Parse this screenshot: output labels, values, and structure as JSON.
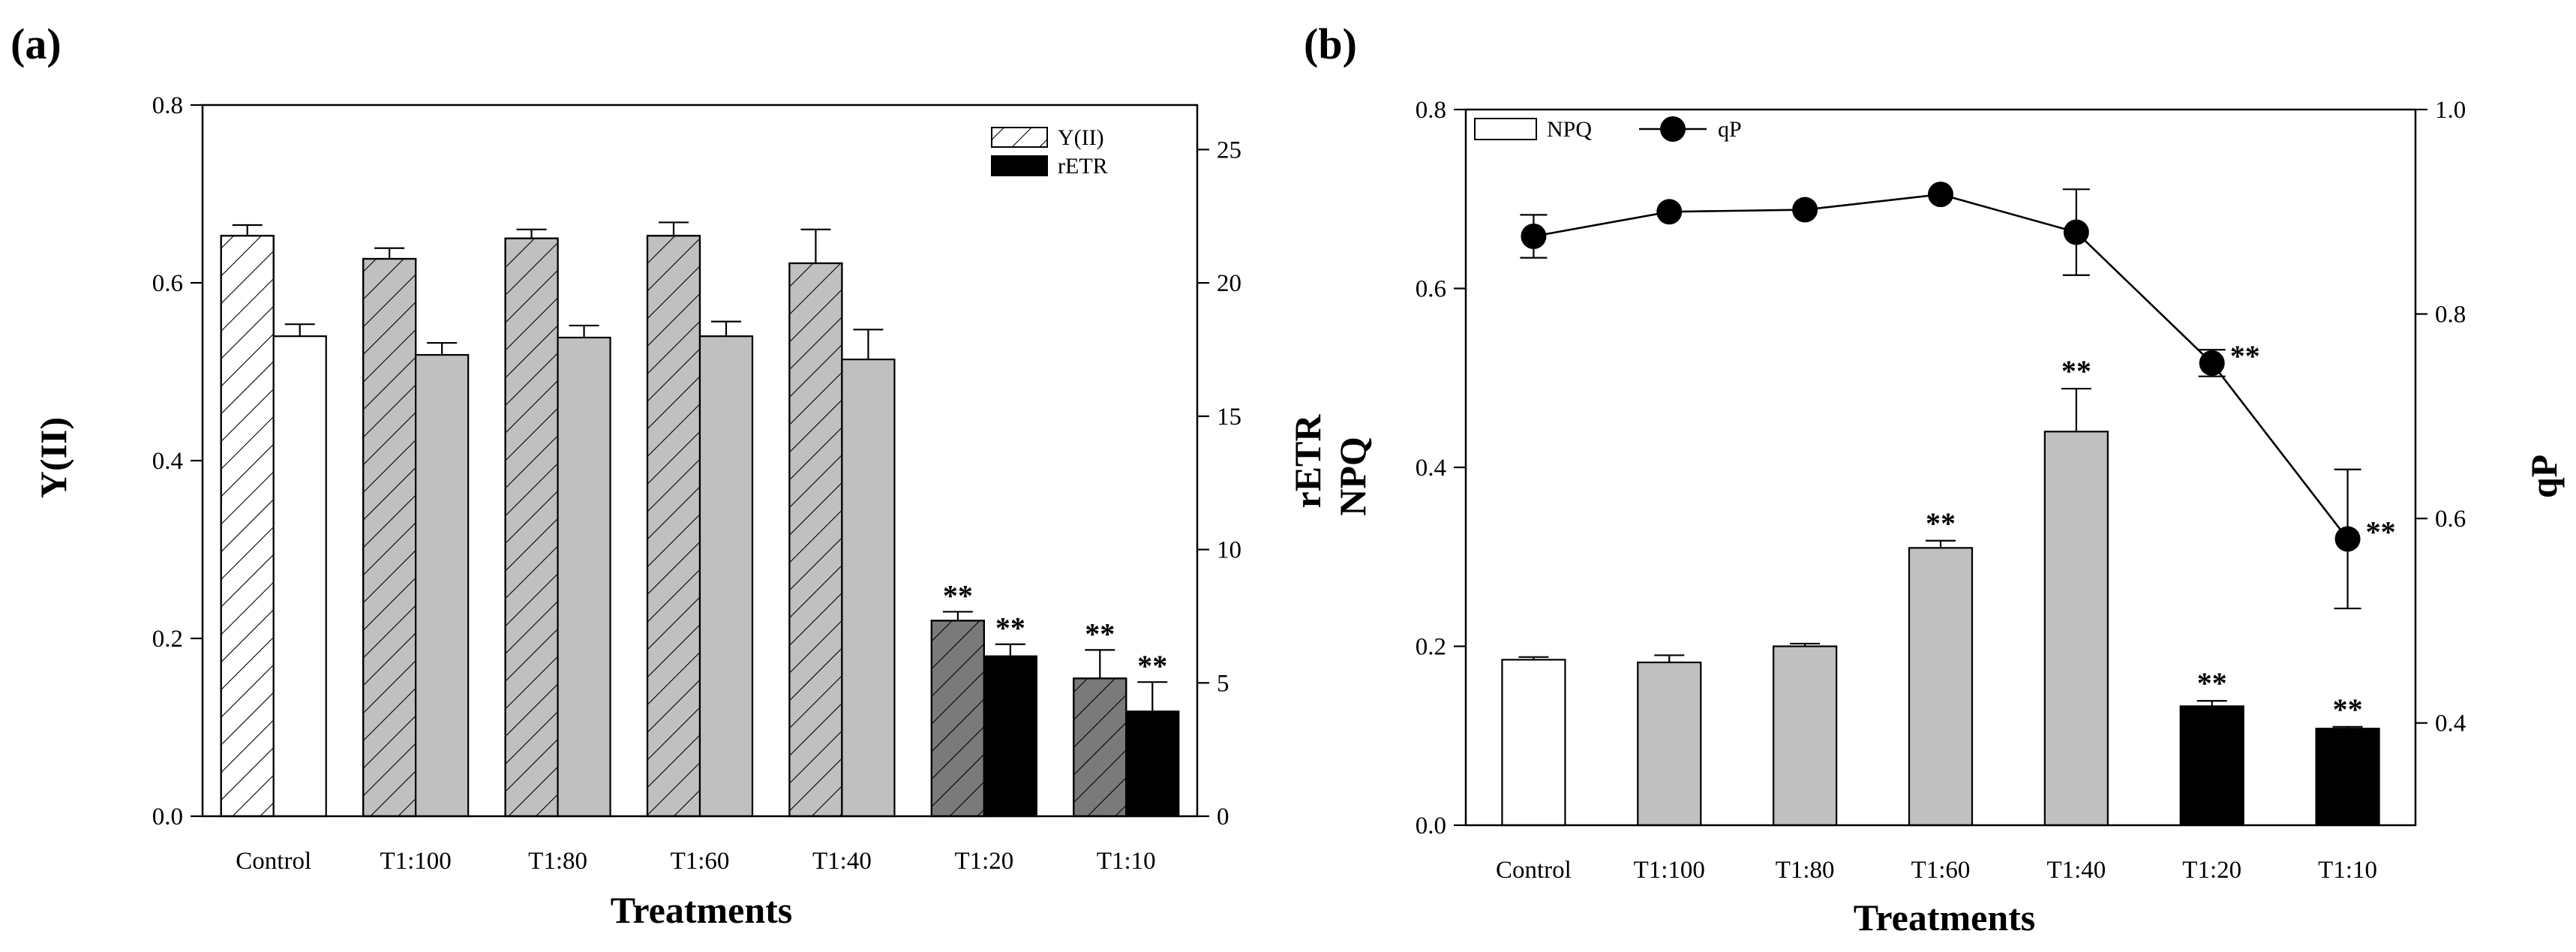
{
  "chart_data": [
    {
      "panel": "(a)",
      "type": "bar",
      "categories": [
        "Control",
        "T1:100",
        "T1:80",
        "T1:60",
        "T1:40",
        "T1:20",
        "T1:10"
      ],
      "xlabel": "Treatments",
      "ylabel": "Y(II)",
      "y2label": "rETR",
      "ylim": [
        0,
        0.8
      ],
      "yticks": [
        "0.0",
        "0.2",
        "0.4",
        "0.6",
        "0.8"
      ],
      "y2lim": [
        0,
        26.67
      ],
      "y2ticks": [
        "0",
        "5",
        "10",
        "15",
        "20",
        "25"
      ],
      "series": [
        {
          "name": "Y(II)",
          "axis": "left",
          "pattern": "hatched",
          "values": [
            0.653,
            0.627,
            0.65,
            0.653,
            0.622,
            0.22,
            0.155
          ],
          "errors": [
            0.012,
            0.012,
            0.01,
            0.015,
            0.038,
            0.01,
            0.032
          ],
          "fills": [
            "#ffffff",
            "#c0c0c0",
            "#c0c0c0",
            "#c0c0c0",
            "#c0c0c0",
            "#7a7a7a",
            "#7a7a7a"
          ],
          "stars": [
            "",
            "",
            "",
            "",
            "",
            "**",
            "**"
          ]
        },
        {
          "name": "rETR",
          "axis": "right",
          "pattern": "solid",
          "values": [
            18.0,
            17.3,
            17.95,
            18.0,
            17.13,
            6.0,
            3.93
          ],
          "errors": [
            0.45,
            0.45,
            0.45,
            0.55,
            1.12,
            0.45,
            1.1
          ],
          "fills": [
            "#ffffff",
            "#c0c0c0",
            "#c0c0c0",
            "#c0c0c0",
            "#c0c0c0",
            "#000000",
            "#000000"
          ],
          "stars": [
            "",
            "",
            "",
            "",
            "",
            "**",
            "**"
          ]
        }
      ],
      "legend": {
        "position": "top-right",
        "entries": [
          "Y(II)",
          "rETR"
        ]
      }
    },
    {
      "panel": "(b)",
      "type": "bar",
      "categories": [
        "Control",
        "T1:100",
        "T1:80",
        "T1:60",
        "T1:40",
        "T1:20",
        "T1:10"
      ],
      "xlabel": "Treatments",
      "ylabel": "NPQ",
      "y2label": "qP",
      "ylim": [
        0,
        0.8
      ],
      "yticks": [
        "0.0",
        "0.2",
        "0.4",
        "0.6",
        "0.8"
      ],
      "y2lim": [
        0.3,
        1.0
      ],
      "y2ticks": [
        "0.4",
        "0.6",
        "0.8",
        "1.0"
      ],
      "series": [
        {
          "name": "NPQ",
          "type": "bar",
          "axis": "left",
          "values": [
            0.185,
            0.182,
            0.2,
            0.31,
            0.44,
            0.133,
            0.108
          ],
          "errors": [
            0.003,
            0.008,
            0.003,
            0.008,
            0.048,
            0.006,
            0.002
          ],
          "fills": [
            "#ffffff",
            "#c0c0c0",
            "#c0c0c0",
            "#c0c0c0",
            "#c0c0c0",
            "#000000",
            "#000000"
          ],
          "stars": [
            "",
            "",
            "",
            "**",
            "**",
            "**",
            "**"
          ]
        },
        {
          "name": "qP",
          "type": "line",
          "axis": "right",
          "values": [
            0.876,
            0.9,
            0.902,
            0.917,
            0.88,
            0.752,
            0.58
          ],
          "errors": [
            0.021,
            0.0,
            0.0,
            0.0,
            0.042,
            0.013,
            0.068
          ],
          "stars": [
            "",
            "",
            "",
            "",
            "",
            "**",
            "**"
          ]
        }
      ],
      "legend": {
        "position": "top-left",
        "entries": [
          "NPQ",
          "qP"
        ]
      }
    }
  ]
}
